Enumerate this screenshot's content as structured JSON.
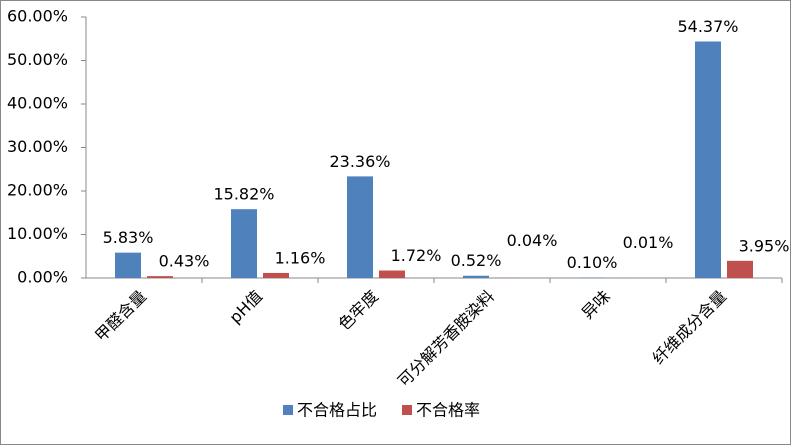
{
  "chart_data": {
    "type": "bar",
    "categories": [
      "甲醛含量",
      "pH值",
      "色牢度",
      "可分解芳香胺染料",
      "异味",
      "纤维成分含量"
    ],
    "series": [
      {
        "name": "不合格占比",
        "color": "#4f81bd",
        "values": [
          5.83,
          15.82,
          23.36,
          0.52,
          0.1,
          54.37
        ],
        "value_labels": [
          "5.83%",
          "15.82%",
          "23.36%",
          "0.52%",
          "0.10%",
          "54.37%"
        ]
      },
      {
        "name": "不合格率",
        "color": "#c0504d",
        "values": [
          0.43,
          1.16,
          1.72,
          0.04,
          0.01,
          3.95
        ],
        "value_labels": [
          "0.43%",
          "1.16%",
          "1.72%",
          "0.04%",
          "0.01%",
          "3.95%"
        ]
      }
    ],
    "ylim": [
      0,
      60
    ],
    "yticks": [
      {
        "value": 0,
        "label": "0.00%"
      },
      {
        "value": 10,
        "label": "10.00%"
      },
      {
        "value": 20,
        "label": "20.00%"
      },
      {
        "value": 30,
        "label": "30.00%"
      },
      {
        "value": 40,
        "label": "40.00%"
      },
      {
        "value": 50,
        "label": "50.00%"
      },
      {
        "value": 60,
        "label": "60.00%"
      }
    ],
    "legend": "bottom"
  }
}
